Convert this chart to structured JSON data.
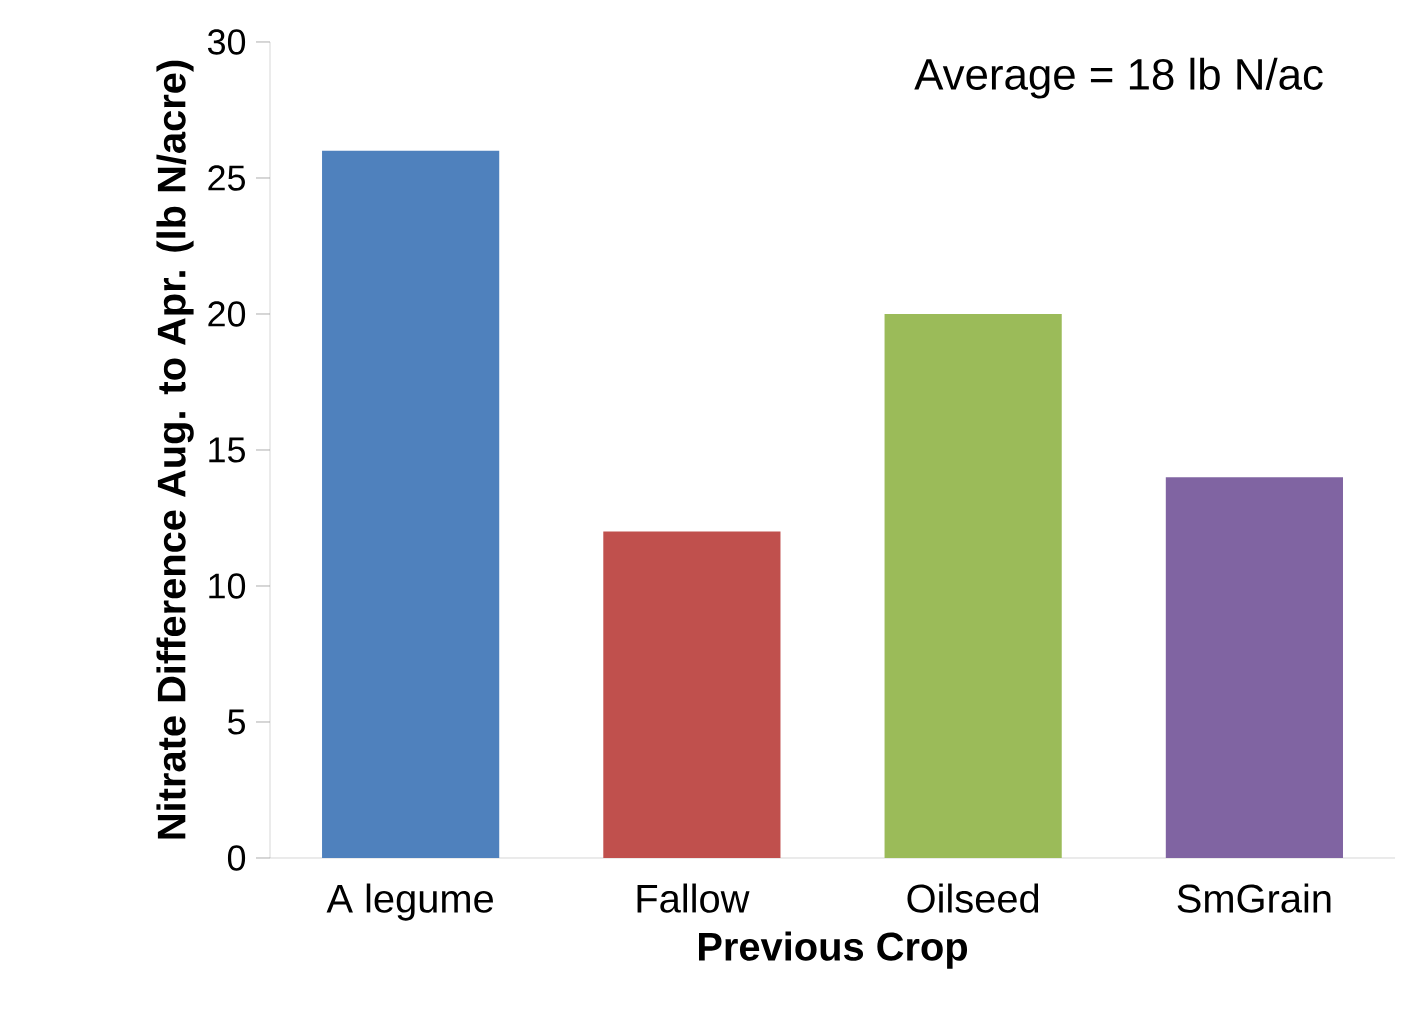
{
  "chart_data": {
    "type": "bar",
    "xlabel": "Previous Crop",
    "ylabel": "Nitrate Difference Aug. to Apr. (lb N/acre)",
    "categories": [
      "A legume",
      "Fallow",
      "Oilseed",
      "SmGrain"
    ],
    "values": [
      26,
      12,
      20,
      14
    ],
    "colors": [
      "#4f81bd",
      "#c0504d",
      "#9bbb59",
      "#8064a2"
    ],
    "ylim": [
      0,
      30
    ],
    "yticks": [
      0,
      5,
      10,
      15,
      20,
      25,
      30
    ],
    "annotations": [
      "Average = 18 lb N/ac"
    ]
  }
}
